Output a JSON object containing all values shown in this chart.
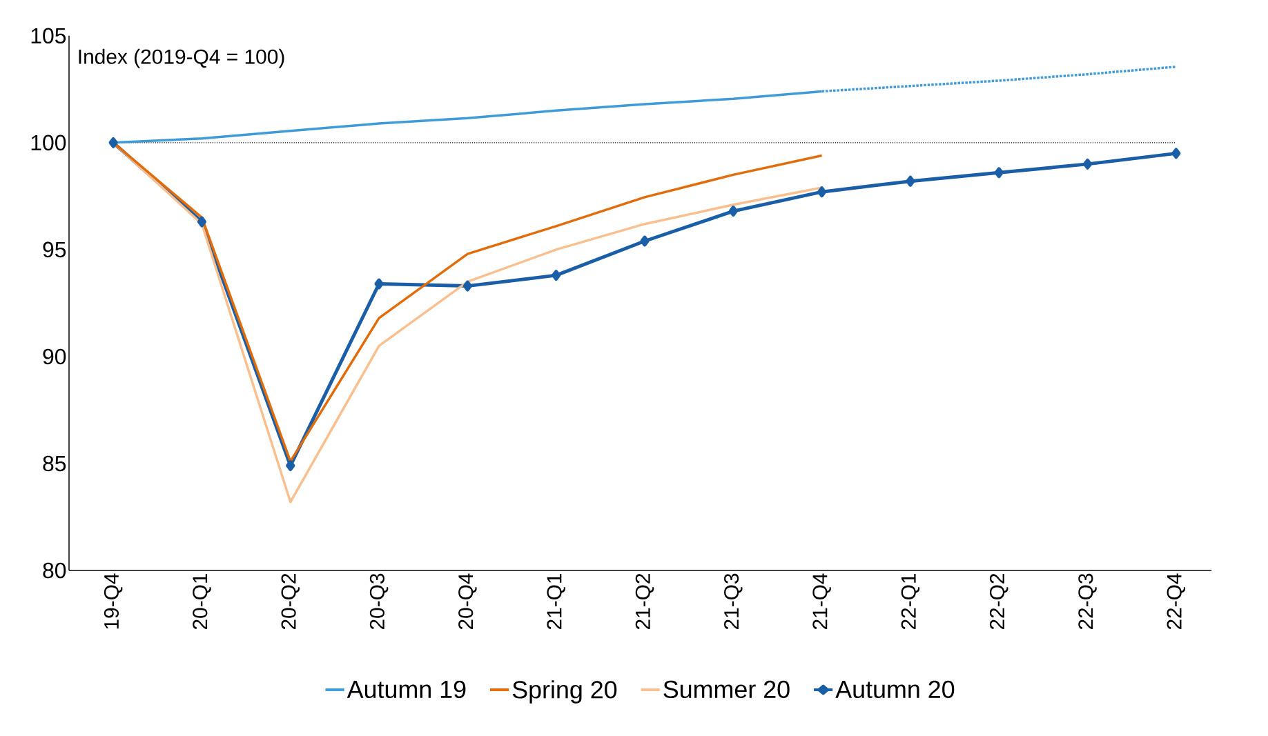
{
  "chart_data": {
    "type": "line",
    "categories": [
      "19-Q4",
      "20-Q1",
      "20-Q2",
      "20-Q3",
      "20-Q4",
      "21-Q1",
      "21-Q2",
      "21-Q3",
      "21-Q4",
      "22-Q1",
      "22-Q2",
      "22-Q3",
      "22-Q4"
    ],
    "series": [
      {
        "name": "Autumn 19",
        "color": "#3f9bd8",
        "line_style": "solid",
        "values": [
          100,
          100.2,
          100.55,
          100.9,
          101.15,
          101.5,
          101.8,
          102.05,
          102.4,
          null,
          null,
          null,
          null
        ]
      },
      {
        "color": "#3f9bd8",
        "line_style": "dotted",
        "values": [
          null,
          null,
          null,
          null,
          null,
          null,
          null,
          null,
          102.4,
          102.65,
          102.9,
          103.2,
          103.55
        ]
      },
      {
        "name": "Spring 20",
        "color": "#e36c0a",
        "line_style": "solid",
        "values": [
          100,
          96.5,
          85.1,
          91.8,
          94.8,
          96.1,
          97.45,
          98.5,
          99.4,
          null,
          null,
          null,
          null
        ]
      },
      {
        "name": "Summer 20",
        "color": "#fabf8f",
        "line_style": "solid",
        "values": [
          100,
          96.2,
          83.2,
          90.5,
          93.5,
          95.0,
          96.2,
          97.1,
          97.9,
          null,
          null,
          null,
          null
        ]
      },
      {
        "name": "Autumn 20",
        "color": "#1a5ea8",
        "line_style": "solid",
        "marker": "diamond",
        "values": [
          100,
          96.3,
          84.9,
          93.4,
          93.3,
          93.8,
          95.4,
          96.8,
          97.7,
          98.2,
          98.6,
          99.0,
          99.5
        ]
      }
    ],
    "ylim": [
      80,
      105
    ],
    "yticks": [
      80,
      85,
      90,
      95,
      100,
      105
    ],
    "ref_lines": [
      {
        "axis": "y",
        "value": 100,
        "color": "#000000",
        "line_style": "dotted"
      }
    ],
    "annotations": [
      "Index (2019-Q4 = 100)"
    ],
    "legend": "bottom",
    "grid": false
  }
}
